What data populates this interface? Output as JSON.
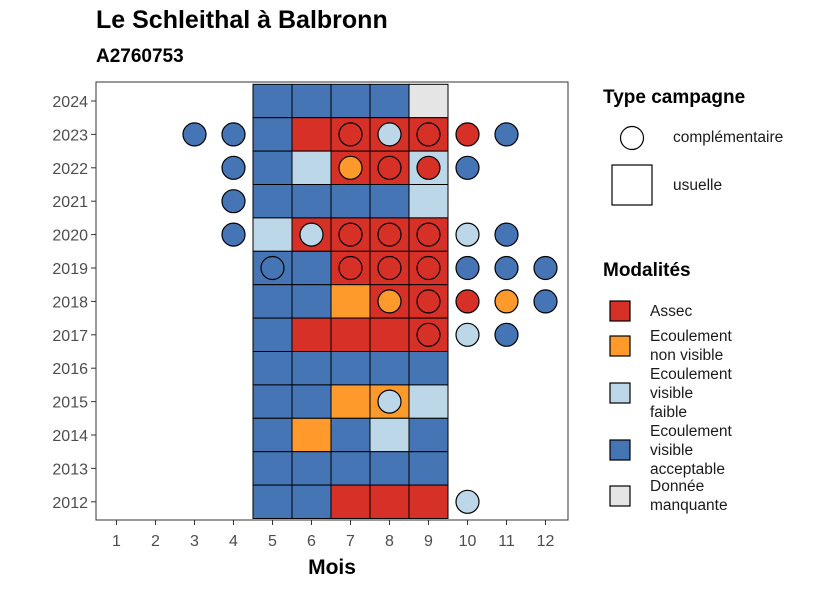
{
  "chart_data": {
    "type": "heatmap",
    "title": "Le Schleithal à Balbronn",
    "subtitle": "A2760753",
    "xlabel": "Mois",
    "ylabel": "",
    "x_ticks": [
      1,
      2,
      3,
      4,
      5,
      6,
      7,
      8,
      9,
      10,
      11,
      12
    ],
    "y_ticks": [
      2012,
      2013,
      2014,
      2015,
      2016,
      2017,
      2018,
      2019,
      2020,
      2021,
      2022,
      2023,
      2024
    ],
    "legend_campagne": {
      "title": "Type campagne",
      "items": [
        {
          "key": "complementaire",
          "label": "complémentaire",
          "shape": "circle"
        },
        {
          "key": "usuelle",
          "label": "usuelle",
          "shape": "square"
        }
      ]
    },
    "legend_modalites": {
      "title": "Modalités",
      "items": [
        {
          "key": "assec",
          "label_lines": [
            "Assec"
          ],
          "color": "#d73027"
        },
        {
          "key": "nonvisible",
          "label_lines": [
            "Ecoulement",
            "non visible"
          ],
          "color": "#fd9a2b"
        },
        {
          "key": "faible",
          "label_lines": [
            "Ecoulement",
            "visible",
            "faible"
          ],
          "color": "#bcd7e8"
        },
        {
          "key": "acceptable",
          "label_lines": [
            "Ecoulement",
            "visible",
            "acceptable"
          ],
          "color": "#4575b4"
        },
        {
          "key": "manquante",
          "label_lines": [
            "Donnée",
            "manquante"
          ],
          "color": "#e5e5e5"
        }
      ]
    },
    "usuelle": [
      [
        2024,
        5,
        "acceptable"
      ],
      [
        2024,
        6,
        "acceptable"
      ],
      [
        2024,
        7,
        "acceptable"
      ],
      [
        2024,
        8,
        "acceptable"
      ],
      [
        2024,
        9,
        "manquante"
      ],
      [
        2023,
        5,
        "acceptable"
      ],
      [
        2023,
        6,
        "assec"
      ],
      [
        2023,
        7,
        "assec"
      ],
      [
        2023,
        8,
        "assec"
      ],
      [
        2023,
        9,
        "assec"
      ],
      [
        2022,
        5,
        "acceptable"
      ],
      [
        2022,
        6,
        "faible"
      ],
      [
        2022,
        7,
        "assec"
      ],
      [
        2022,
        8,
        "assec"
      ],
      [
        2022,
        9,
        "faible"
      ],
      [
        2021,
        5,
        "acceptable"
      ],
      [
        2021,
        6,
        "acceptable"
      ],
      [
        2021,
        7,
        "acceptable"
      ],
      [
        2021,
        8,
        "acceptable"
      ],
      [
        2021,
        9,
        "faible"
      ],
      [
        2020,
        5,
        "faible"
      ],
      [
        2020,
        6,
        "assec"
      ],
      [
        2020,
        7,
        "assec"
      ],
      [
        2020,
        8,
        "assec"
      ],
      [
        2020,
        9,
        "assec"
      ],
      [
        2019,
        5,
        "acceptable"
      ],
      [
        2019,
        6,
        "acceptable"
      ],
      [
        2019,
        7,
        "assec"
      ],
      [
        2019,
        8,
        "assec"
      ],
      [
        2019,
        9,
        "assec"
      ],
      [
        2018,
        5,
        "acceptable"
      ],
      [
        2018,
        6,
        "acceptable"
      ],
      [
        2018,
        7,
        "nonvisible"
      ],
      [
        2018,
        8,
        "assec"
      ],
      [
        2018,
        9,
        "assec"
      ],
      [
        2017,
        5,
        "acceptable"
      ],
      [
        2017,
        6,
        "assec"
      ],
      [
        2017,
        7,
        "assec"
      ],
      [
        2017,
        8,
        "assec"
      ],
      [
        2017,
        9,
        "assec"
      ],
      [
        2016,
        5,
        "acceptable"
      ],
      [
        2016,
        6,
        "acceptable"
      ],
      [
        2016,
        7,
        "acceptable"
      ],
      [
        2016,
        8,
        "acceptable"
      ],
      [
        2016,
        9,
        "acceptable"
      ],
      [
        2015,
        5,
        "acceptable"
      ],
      [
        2015,
        6,
        "acceptable"
      ],
      [
        2015,
        7,
        "nonvisible"
      ],
      [
        2015,
        8,
        "nonvisible"
      ],
      [
        2015,
        9,
        "faible"
      ],
      [
        2014,
        5,
        "acceptable"
      ],
      [
        2014,
        6,
        "nonvisible"
      ],
      [
        2014,
        7,
        "acceptable"
      ],
      [
        2014,
        8,
        "faible"
      ],
      [
        2014,
        9,
        "acceptable"
      ],
      [
        2013,
        5,
        "acceptable"
      ],
      [
        2013,
        6,
        "acceptable"
      ],
      [
        2013,
        7,
        "acceptable"
      ],
      [
        2013,
        8,
        "acceptable"
      ],
      [
        2013,
        9,
        "acceptable"
      ],
      [
        2012,
        5,
        "acceptable"
      ],
      [
        2012,
        6,
        "acceptable"
      ],
      [
        2012,
        7,
        "assec"
      ],
      [
        2012,
        8,
        "assec"
      ],
      [
        2012,
        9,
        "assec"
      ]
    ],
    "complementaire": [
      [
        2023,
        3,
        "acceptable"
      ],
      [
        2023,
        4,
        "acceptable"
      ],
      [
        2023,
        7,
        "assec"
      ],
      [
        2023,
        8,
        "faible"
      ],
      [
        2023,
        9,
        "assec"
      ],
      [
        2023,
        10,
        "assec"
      ],
      [
        2023,
        11,
        "acceptable"
      ],
      [
        2022,
        4,
        "acceptable"
      ],
      [
        2022,
        7,
        "nonvisible"
      ],
      [
        2022,
        8,
        "assec"
      ],
      [
        2022,
        9,
        "assec"
      ],
      [
        2022,
        10,
        "acceptable"
      ],
      [
        2021,
        4,
        "acceptable"
      ],
      [
        2020,
        4,
        "acceptable"
      ],
      [
        2020,
        6,
        "faible"
      ],
      [
        2020,
        7,
        "assec"
      ],
      [
        2020,
        8,
        "assec"
      ],
      [
        2020,
        9,
        "assec"
      ],
      [
        2020,
        10,
        "faible"
      ],
      [
        2020,
        11,
        "acceptable"
      ],
      [
        2019,
        5,
        "acceptable"
      ],
      [
        2019,
        7,
        "assec"
      ],
      [
        2019,
        8,
        "assec"
      ],
      [
        2019,
        9,
        "assec"
      ],
      [
        2019,
        10,
        "acceptable"
      ],
      [
        2019,
        11,
        "acceptable"
      ],
      [
        2019,
        12,
        "acceptable"
      ],
      [
        2018,
        8,
        "nonvisible"
      ],
      [
        2018,
        9,
        "assec"
      ],
      [
        2018,
        10,
        "assec"
      ],
      [
        2018,
        11,
        "nonvisible"
      ],
      [
        2018,
        12,
        "acceptable"
      ],
      [
        2017,
        9,
        "assec"
      ],
      [
        2017,
        10,
        "faible"
      ],
      [
        2017,
        11,
        "acceptable"
      ],
      [
        2015,
        8,
        "faible"
      ],
      [
        2012,
        10,
        "faible"
      ]
    ]
  }
}
